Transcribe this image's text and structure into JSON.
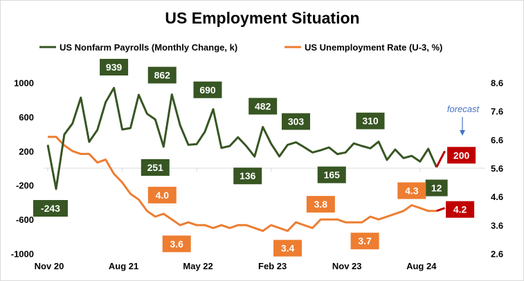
{
  "chart_data": {
    "type": "line",
    "title": "US Employment Situation",
    "legend_position": "top",
    "x_tick_labels": [
      "Nov 20",
      "Aug 21",
      "May 22",
      "Feb 23",
      "Nov 23",
      "Aug 24"
    ],
    "x_tick_month_index": [
      0,
      9,
      18,
      27,
      36,
      45
    ],
    "left_axis": {
      "ylim": [
        -1000,
        1000
      ],
      "ticks": [
        "1000",
        "600",
        "200",
        "-200",
        "-600",
        "-1000"
      ]
    },
    "right_axis": {
      "ylim": [
        2.6,
        8.6
      ],
      "ticks": [
        "8.6",
        "7.6",
        "6.6",
        "5.6",
        "4.6",
        "3.6",
        "2.6"
      ]
    },
    "grid": false,
    "series": [
      {
        "name": "US Nonfarm Payrolls (Monthly Change, k)",
        "axis": "left",
        "color": "#375623",
        "start": "Nov 20",
        "values": [
          273,
          -243,
          394,
          524,
          826,
          308,
          448,
          772,
          939,
          453,
          470,
          858,
          637,
          570,
          251,
          862,
          502,
          273,
          281,
          427,
          690,
          237,
          259,
          362,
          259,
          136,
          482,
          287,
          138,
          273,
          303,
          246,
          184,
          210,
          243,
          165,
          184,
          290,
          259,
          232,
          310,
          97,
          219,
          118,
          144,
          78,
          227,
          12
        ],
        "labeled_points": [
          1,
          8,
          14,
          15,
          20,
          25,
          26,
          30,
          35,
          40,
          47
        ],
        "labels": [
          "-243",
          "939",
          "251",
          "862",
          "690",
          "136",
          "482",
          "303",
          "165",
          "310",
          "12"
        ]
      },
      {
        "name": "US Unemployment Rate (U-3, %)",
        "axis": "right",
        "color": "#ED7D31",
        "start": "Nov 20",
        "values": [
          6.7,
          6.7,
          6.4,
          6.2,
          6.1,
          6.1,
          5.8,
          5.9,
          5.4,
          5.1,
          4.7,
          4.5,
          4.1,
          3.9,
          4.0,
          3.8,
          3.6,
          3.7,
          3.6,
          3.6,
          3.5,
          3.6,
          3.5,
          3.6,
          3.6,
          3.5,
          3.4,
          3.6,
          3.5,
          3.4,
          3.7,
          3.6,
          3.5,
          3.8,
          3.8,
          3.8,
          3.7,
          3.7,
          3.7,
          3.9,
          3.8,
          3.9,
          4.0,
          4.1,
          4.3,
          4.2,
          4.1,
          4.1
        ],
        "labeled_points": [
          14,
          16,
          29,
          33,
          38,
          44
        ],
        "labels": [
          "4.0",
          "3.6",
          "3.4",
          "3.8",
          "3.7",
          "4.3"
        ]
      }
    ],
    "forecast": {
      "annotation": "forecast",
      "color": "#C00000",
      "annotation_color": "#4472C4",
      "payrolls": 200,
      "payrolls_label": "200",
      "unemployment": 4.2,
      "unemployment_label": "4.2"
    }
  }
}
